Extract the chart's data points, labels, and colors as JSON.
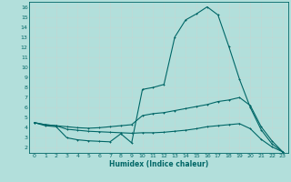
{
  "xlabel": "Humidex (Indice chaleur)",
  "bg_color": "#b2dfdb",
  "grid_color": "#c8e8e5",
  "line_color": "#006666",
  "xlim": [
    -0.5,
    23.5
  ],
  "ylim": [
    1.5,
    16.5
  ],
  "xticks": [
    0,
    1,
    2,
    3,
    4,
    5,
    6,
    7,
    8,
    9,
    10,
    11,
    12,
    13,
    14,
    15,
    16,
    17,
    18,
    19,
    20,
    21,
    22,
    23
  ],
  "yticks": [
    2,
    3,
    4,
    5,
    6,
    7,
    8,
    9,
    10,
    11,
    12,
    13,
    14,
    15,
    16
  ],
  "line1_x": [
    0,
    1,
    2,
    3,
    4,
    5,
    6,
    7,
    8,
    9,
    10,
    11,
    12,
    13,
    14,
    15,
    16,
    17,
    18,
    19,
    20,
    21,
    22,
    23
  ],
  "line1_y": [
    4.5,
    4.2,
    4.1,
    3.0,
    2.8,
    2.7,
    2.65,
    2.6,
    3.4,
    2.5,
    7.8,
    8.0,
    8.3,
    13.0,
    14.7,
    15.3,
    16.0,
    15.2,
    12.1,
    8.8,
    6.0,
    3.8,
    2.4,
    1.6
  ],
  "line2_x": [
    0,
    1,
    2,
    3,
    4,
    5,
    6,
    7,
    8,
    9,
    10,
    11,
    12,
    13,
    14,
    15,
    16,
    17,
    18,
    19,
    20,
    21,
    22,
    23
  ],
  "line2_y": [
    4.5,
    4.3,
    4.2,
    4.1,
    4.0,
    3.95,
    4.0,
    4.1,
    4.2,
    4.3,
    5.2,
    5.4,
    5.5,
    5.7,
    5.9,
    6.1,
    6.3,
    6.6,
    6.75,
    7.0,
    6.2,
    4.1,
    2.7,
    1.6
  ],
  "line3_x": [
    0,
    1,
    2,
    3,
    4,
    5,
    6,
    7,
    8,
    9,
    10,
    11,
    12,
    13,
    14,
    15,
    16,
    17,
    18,
    19,
    20,
    21,
    22,
    23
  ],
  "line3_y": [
    4.5,
    4.3,
    4.2,
    3.85,
    3.75,
    3.65,
    3.6,
    3.55,
    3.5,
    3.45,
    3.5,
    3.5,
    3.55,
    3.65,
    3.75,
    3.9,
    4.1,
    4.2,
    4.3,
    4.4,
    3.9,
    2.85,
    2.1,
    1.6
  ]
}
